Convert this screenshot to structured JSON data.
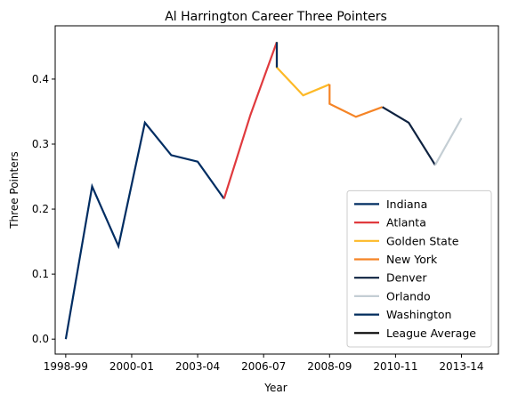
{
  "chart_data": {
    "type": "line",
    "title": "Al Harrington Career Three Pointers",
    "xlabel": "Year",
    "ylabel": "Three Pointers",
    "x_ticks": [
      "1998-99",
      "2000-01",
      "2003-04",
      "2006-07",
      "2008-09",
      "2010-11",
      "2013-14"
    ],
    "y_ticks": [
      "0.0",
      "0.1",
      "0.2",
      "0.3",
      "0.4"
    ],
    "xlim": [
      1997.6,
      2014.4
    ],
    "ylim": [
      -0.023,
      0.482
    ],
    "grid": false,
    "legend_placement": "lower-right",
    "series": [
      {
        "name": "Indiana",
        "color": "#002D62",
        "x": [
          1998,
          1999,
          2000,
          2001,
          2002,
          2003,
          2004
        ],
        "y": [
          0.0,
          0.235,
          0.143,
          0.333,
          0.283,
          0.273,
          0.216
        ]
      },
      {
        "name": "Atlanta",
        "color": "#E03A3E",
        "x": [
          2004,
          2005,
          2006
        ],
        "y": [
          0.216,
          0.345,
          0.457
        ]
      },
      {
        "name": "Golden State",
        "color": "#FDB927",
        "x": [
          2006,
          2006,
          2007,
          2008
        ],
        "y": [
          0.457,
          0.418,
          0.375,
          0.392
        ]
      },
      {
        "name": "New York",
        "color": "#F58426",
        "x": [
          2008,
          2008,
          2009,
          2010
        ],
        "y": [
          0.392,
          0.362,
          0.342,
          0.357
        ]
      },
      {
        "name": "Denver",
        "color": "#0E2240",
        "x": [
          2010,
          2011,
          2012
        ],
        "y": [
          0.357,
          0.333,
          0.268
        ]
      },
      {
        "name": "Orlando",
        "color": "#C4CED4",
        "x": [
          2012,
          2013
        ],
        "y": [
          0.268,
          0.34
        ]
      },
      {
        "name": "Washington",
        "color": "#002B5C",
        "x": [
          2006,
          2006
        ],
        "y": [
          0.418,
          0.457
        ]
      },
      {
        "name": "League Average",
        "color": "#000000",
        "x": [],
        "y": []
      }
    ]
  }
}
